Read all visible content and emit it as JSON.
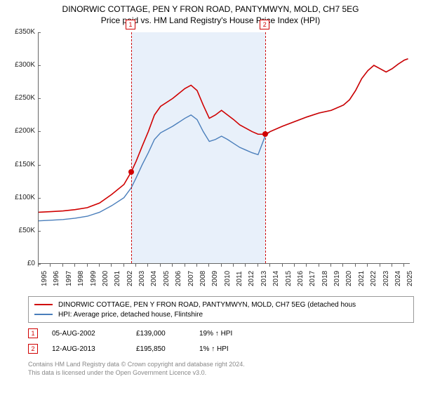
{
  "title": "DINORWIC COTTAGE, PEN Y FRON ROAD, PANTYMWYN, MOLD, CH7 5EG",
  "subtitle": "Price paid vs. HM Land Registry's House Price Index (HPI)",
  "chart": {
    "type": "line",
    "ylim": [
      0,
      350000
    ],
    "ytick_step": 50000,
    "ytick_labels": [
      "£0",
      "£50K",
      "£100K",
      "£150K",
      "£200K",
      "£250K",
      "£300K",
      "£350K"
    ],
    "x_start": 1995,
    "x_end": 2025.5,
    "xtick_years": [
      1995,
      1996,
      1997,
      1998,
      1999,
      2000,
      2001,
      2002,
      2003,
      2004,
      2005,
      2006,
      2007,
      2008,
      2009,
      2010,
      2011,
      2012,
      2013,
      2014,
      2015,
      2016,
      2017,
      2018,
      2019,
      2020,
      2021,
      2022,
      2023,
      2024,
      2025
    ],
    "shade_start": 2002.6,
    "shade_end": 2013.6,
    "background_color": "#ffffff",
    "shade_color": "#e8f0fa",
    "grid_color": "#666666",
    "series": [
      {
        "name": "DINORWIC COTTAGE, PEN Y FRON ROAD, PANTYMWYN, MOLD, CH7 5EG (detached hous",
        "color": "#d00000",
        "width": 1.6,
        "points": [
          [
            1995,
            78000
          ],
          [
            1996,
            79000
          ],
          [
            1997,
            80000
          ],
          [
            1998,
            82000
          ],
          [
            1999,
            85000
          ],
          [
            2000,
            92000
          ],
          [
            2001,
            105000
          ],
          [
            2002,
            120000
          ],
          [
            2002.6,
            139000
          ],
          [
            2003,
            155000
          ],
          [
            2003.5,
            178000
          ],
          [
            2004,
            200000
          ],
          [
            2004.5,
            225000
          ],
          [
            2005,
            238000
          ],
          [
            2006,
            250000
          ],
          [
            2007,
            265000
          ],
          [
            2007.5,
            270000
          ],
          [
            2008,
            262000
          ],
          [
            2008.5,
            240000
          ],
          [
            2009,
            220000
          ],
          [
            2009.5,
            225000
          ],
          [
            2010,
            232000
          ],
          [
            2010.5,
            225000
          ],
          [
            2011,
            218000
          ],
          [
            2011.5,
            210000
          ],
          [
            2012,
            205000
          ],
          [
            2012.5,
            200000
          ],
          [
            2013,
            196000
          ],
          [
            2013.6,
            195850
          ],
          [
            2014,
            200000
          ],
          [
            2015,
            208000
          ],
          [
            2016,
            215000
          ],
          [
            2017,
            222000
          ],
          [
            2018,
            228000
          ],
          [
            2019,
            232000
          ],
          [
            2020,
            240000
          ],
          [
            2020.5,
            248000
          ],
          [
            2021,
            262000
          ],
          [
            2021.5,
            280000
          ],
          [
            2022,
            292000
          ],
          [
            2022.5,
            300000
          ],
          [
            2023,
            295000
          ],
          [
            2023.5,
            290000
          ],
          [
            2024,
            295000
          ],
          [
            2024.5,
            302000
          ],
          [
            2025,
            308000
          ],
          [
            2025.3,
            310000
          ]
        ]
      },
      {
        "name": "HPI: Average price, detached house, Flintshire",
        "color": "#4a7ebb",
        "width": 1.4,
        "points": [
          [
            1995,
            65000
          ],
          [
            1996,
            66000
          ],
          [
            1997,
            67000
          ],
          [
            1998,
            69000
          ],
          [
            1999,
            72000
          ],
          [
            2000,
            78000
          ],
          [
            2001,
            88000
          ],
          [
            2002,
            100000
          ],
          [
            2002.6,
            115000
          ],
          [
            2003,
            130000
          ],
          [
            2003.5,
            150000
          ],
          [
            2004,
            168000
          ],
          [
            2004.5,
            188000
          ],
          [
            2005,
            198000
          ],
          [
            2006,
            208000
          ],
          [
            2007,
            220000
          ],
          [
            2007.5,
            225000
          ],
          [
            2008,
            218000
          ],
          [
            2008.5,
            200000
          ],
          [
            2009,
            185000
          ],
          [
            2009.5,
            188000
          ],
          [
            2010,
            193000
          ],
          [
            2010.5,
            188000
          ],
          [
            2011,
            182000
          ],
          [
            2011.5,
            176000
          ],
          [
            2012,
            172000
          ],
          [
            2012.5,
            168000
          ],
          [
            2013,
            165000
          ],
          [
            2013.6,
            194000
          ],
          [
            2014,
            200000
          ],
          [
            2015,
            208000
          ],
          [
            2016,
            215000
          ],
          [
            2017,
            222000
          ],
          [
            2018,
            228000
          ],
          [
            2019,
            232000
          ],
          [
            2020,
            240000
          ],
          [
            2020.5,
            248000
          ],
          [
            2021,
            262000
          ],
          [
            2021.5,
            280000
          ],
          [
            2022,
            292000
          ],
          [
            2022.5,
            300000
          ],
          [
            2023,
            295000
          ],
          [
            2023.5,
            290000
          ],
          [
            2024,
            295000
          ],
          [
            2024.5,
            302000
          ],
          [
            2025,
            308000
          ],
          [
            2025.3,
            310000
          ]
        ]
      }
    ],
    "markers": [
      {
        "label": "1",
        "x": 2002.6,
        "y": 139000,
        "dot_color": "#d00000"
      },
      {
        "label": "2",
        "x": 2013.6,
        "y": 195850,
        "dot_color": "#d00000"
      }
    ]
  },
  "sales": [
    {
      "flag": "1",
      "date": "05-AUG-2002",
      "price": "£139,000",
      "hpi": "19% ↑ HPI"
    },
    {
      "flag": "2",
      "date": "12-AUG-2013",
      "price": "£195,850",
      "hpi": "1% ↑ HPI"
    }
  ],
  "footnote_line1": "Contains HM Land Registry data © Crown copyright and database right 2024.",
  "footnote_line2": "This data is licensed under the Open Government Licence v3.0."
}
